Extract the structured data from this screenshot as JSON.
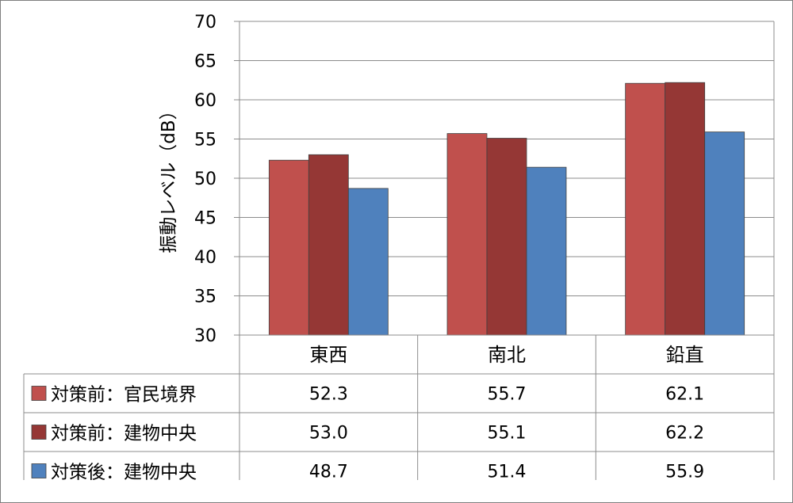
{
  "chart_data": {
    "type": "bar",
    "title": "",
    "xlabel": "",
    "ylabel": "振動レベル（dB）",
    "ylim": [
      30,
      70
    ],
    "yticks": [
      30,
      35,
      40,
      45,
      50,
      55,
      60,
      65,
      70
    ],
    "grid": true,
    "legend": "data-table",
    "categories": [
      "東西",
      "南北",
      "鉛直"
    ],
    "series": [
      {
        "name": "対策前：官民境界",
        "color": "#c0504d",
        "values": [
          52.3,
          55.7,
          62.1
        ],
        "labels": [
          "52.3",
          "55.7",
          "62.1"
        ]
      },
      {
        "name": "対策前：建物中央",
        "color": "#953735",
        "values": [
          53.0,
          55.1,
          62.2
        ],
        "labels": [
          "53.0",
          "55.1",
          "62.2"
        ]
      },
      {
        "name": "対策後：建物中央",
        "color": "#4f81bd",
        "values": [
          48.7,
          51.4,
          55.9
        ],
        "labels": [
          "48.7",
          "51.4",
          "55.9"
        ]
      }
    ]
  }
}
